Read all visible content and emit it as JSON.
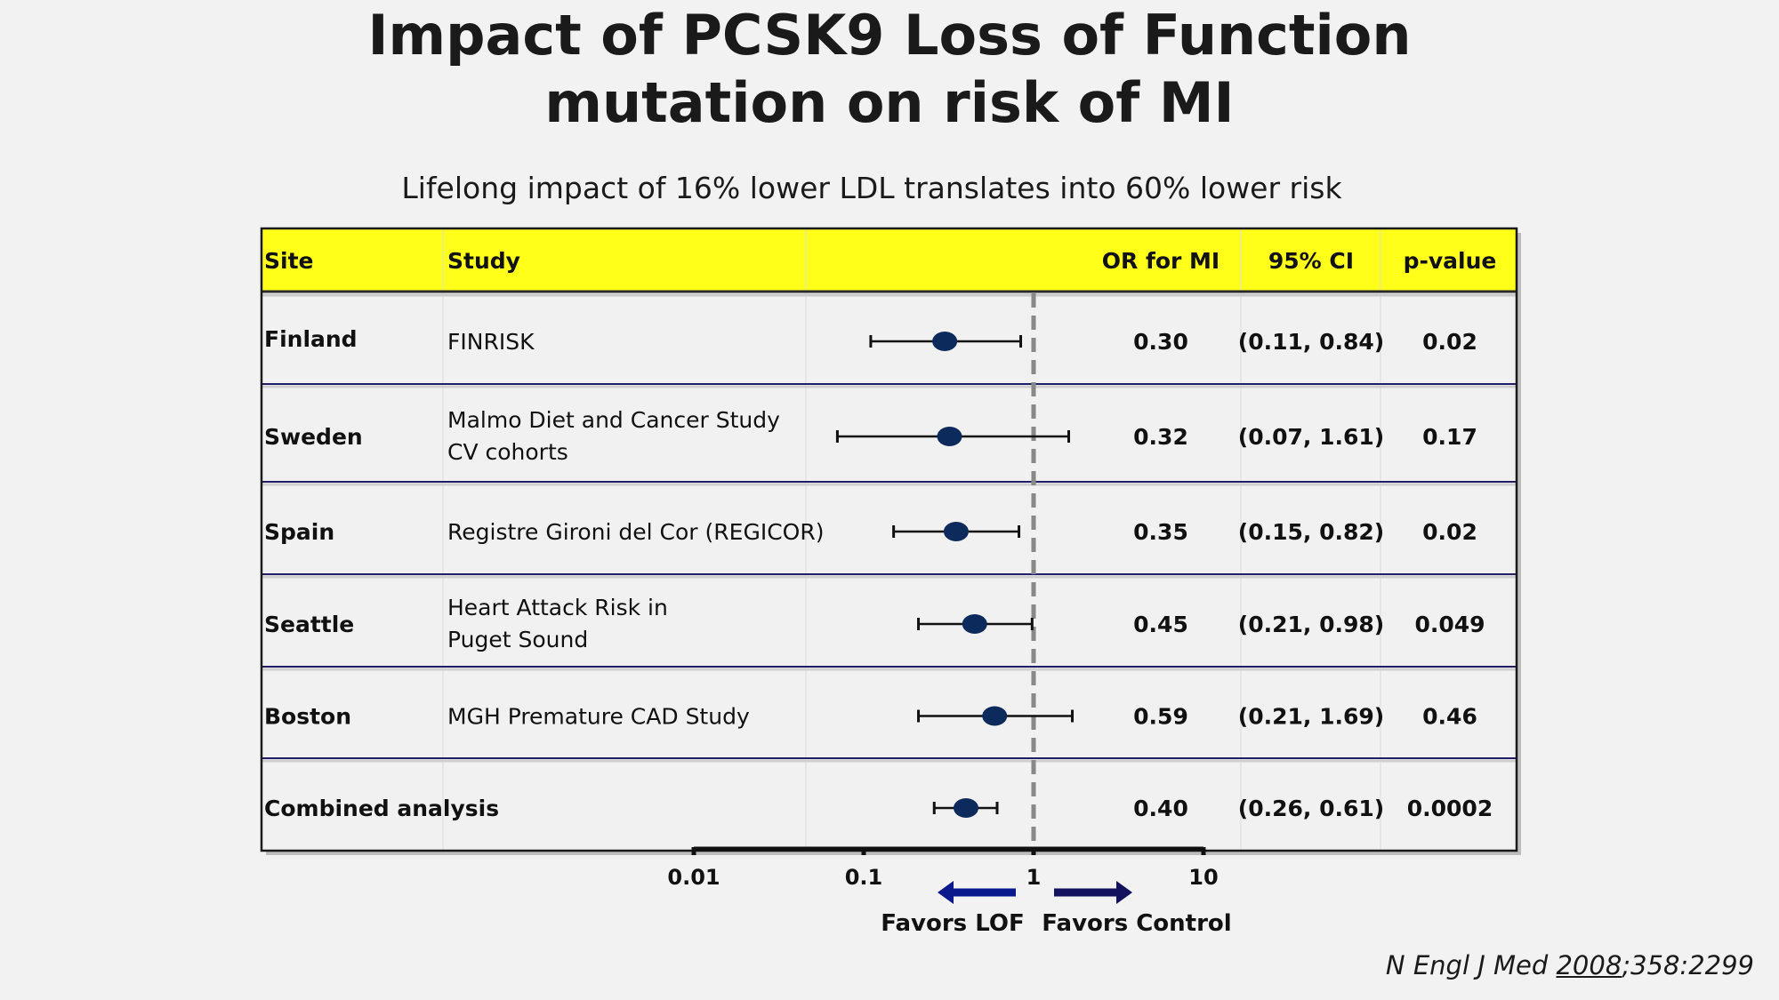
{
  "title_line1": "Impact of PCSK9 Loss of Function",
  "title_line2": "mutation on risk of MI",
  "subtitle": "Lifelong impact of 16% lower LDL translates into 60% lower risk",
  "citation": {
    "journal": "N Engl J Med",
    "year": "2008",
    "rest": ";358:2299"
  },
  "colors": {
    "header_bg": "#ffff1a",
    "marker": "#0d2a5c",
    "row_border": "#1f1f6b",
    "ref_line": "#888888",
    "arrow_left": "#0a1a8c",
    "arrow_right": "#12125e"
  },
  "chart_data": {
    "type": "forest",
    "scale": "log",
    "xlim": [
      0.01,
      10
    ],
    "reference_value": 1,
    "ticks": [
      {
        "value": 0.01,
        "label": "0.01"
      },
      {
        "value": 0.1,
        "label": "0.1"
      },
      {
        "value": 1,
        "label": "1"
      },
      {
        "value": 10,
        "label": "10"
      }
    ],
    "headers": {
      "site": "Site",
      "study": "Study",
      "or": "OR for MI",
      "ci": "95% CI",
      "p": "p-value"
    },
    "rows": [
      {
        "site": "Finland",
        "study": [
          "FINRISK"
        ],
        "or": 0.3,
        "lo": 0.11,
        "hi": 0.84,
        "or_text": "0.30",
        "ci_text": "(0.11, 0.84)",
        "p_text": "0.02"
      },
      {
        "site": "Sweden",
        "study": [
          "Malmo Diet and Cancer Study",
          "CV cohorts"
        ],
        "or": 0.32,
        "lo": 0.07,
        "hi": 1.61,
        "or_text": "0.32",
        "ci_text": "(0.07, 1.61)",
        "p_text": "0.17"
      },
      {
        "site": "Spain",
        "study": [
          "Registre Gironi del Cor (REGICOR)"
        ],
        "or": 0.35,
        "lo": 0.15,
        "hi": 0.82,
        "or_text": "0.35",
        "ci_text": "(0.15, 0.82)",
        "p_text": "0.02"
      },
      {
        "site": "Seattle",
        "study": [
          "Heart Attack Risk in",
          "Puget Sound"
        ],
        "or": 0.45,
        "lo": 0.21,
        "hi": 0.98,
        "or_text": "0.45",
        "ci_text": "(0.21, 0.98)",
        "p_text": "0.049"
      },
      {
        "site": "Boston",
        "study": [
          "MGH Premature CAD Study"
        ],
        "or": 0.59,
        "lo": 0.21,
        "hi": 1.69,
        "or_text": "0.59",
        "ci_text": "(0.21, 1.69)",
        "p_text": "0.46"
      },
      {
        "site": "Combined analysis",
        "study": [],
        "or": 0.4,
        "lo": 0.26,
        "hi": 0.61,
        "or_text": "0.40",
        "ci_text": "(0.26, 0.61)",
        "p_text": "0.0002"
      }
    ],
    "favors_left": "Favors LOF",
    "favors_right": "Favors Control"
  }
}
